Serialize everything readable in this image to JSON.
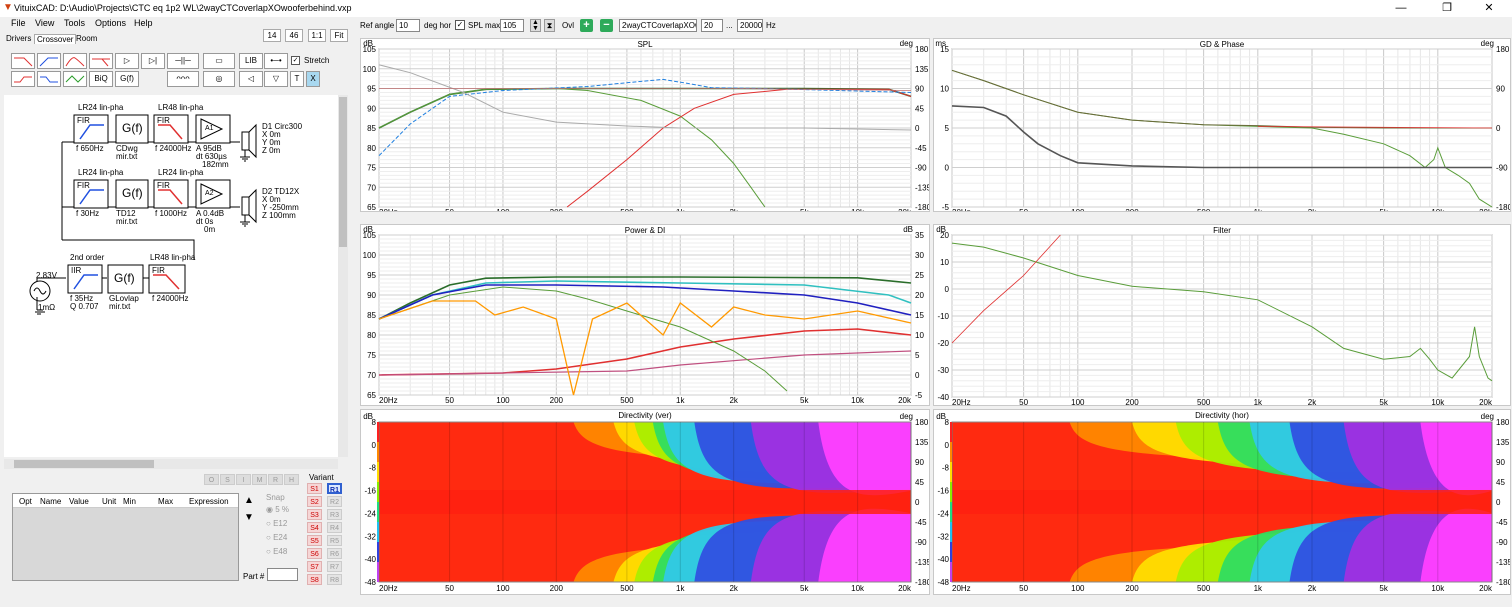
{
  "window": {
    "title": "VituixCAD: D:\\Audio\\Projects\\CTC eq 1p2 WL\\2wayCTCoverlapXOwooferbehind.vxp",
    "min": "—",
    "max": "❐",
    "close": "✕"
  },
  "menu": [
    "File",
    "View",
    "Tools",
    "Options",
    "Help"
  ],
  "tabs": [
    "Drivers",
    "Crossover",
    "Room"
  ],
  "zoom_buttons": [
    "14",
    "46",
    "1:1",
    "Fit"
  ],
  "toolbar": {
    "ref_angle_label": "Ref angle",
    "ref_angle": "10",
    "deg_hor": "deg hor",
    "spl_max_label": "SPL max",
    "spl_max": "105",
    "ovl_label": "Ovl",
    "ovl_file": "2wayCTCoverlapXOwooferbehind",
    "f_min": "20",
    "dots": "...",
    "f_max": "20000",
    "hz": "Hz"
  },
  "filter_buttons": {
    "biq": "BiQ",
    "gf": "G(f)",
    "lib": "LIB",
    "stretch": "Stretch",
    "t": "T",
    "x": "X"
  },
  "schematic": {
    "b1": {
      "t1": "LR24 lin-pha",
      "t2": "LR48 lin-pha",
      "fir": "FIR",
      "gf": "G(f)",
      "f1": "f  650Hz",
      "cd": "CDwg",
      "mir": "mir.txt",
      "f2": "f  24000Hz",
      "a": "A  95dB",
      "dt": "dt 630µs",
      "mm": "182mm",
      "amp": "A1"
    },
    "b2": {
      "t1": "LR24 lin-pha",
      "t2": "LR24 lin-pha",
      "fir": "FIR",
      "gf": "G(f)",
      "f1": "f  30Hz",
      "cd": "TD12",
      "mir": "mir.txt",
      "f2": "f  1000Hz",
      "a": "A  0.4dB",
      "dt": "dt 0s",
      "mm": "0m",
      "amp": "A2"
    },
    "d1": {
      "name": "D1 Circ300",
      "x": "X 0m",
      "y": "Y 0m",
      "z": "Z 0m"
    },
    "d2": {
      "name": "D2 TD12X",
      "x": "X 0m",
      "y": "Y -250mm",
      "z": "Z 100mm"
    },
    "src": {
      "t1": "2nd order",
      "t2": "LR48 lin-pha",
      "iir": "IIR",
      "fir": "FIR",
      "gf": "G(f)",
      "f1": "f  35Hz",
      "q": "Q  0.707",
      "gl": "GLovlap",
      "mir": "mir.txt",
      "f2": "f  24000Hz",
      "v": "2.83V",
      "r": "1mΩ"
    }
  },
  "optgrid": {
    "headers": [
      "Opt",
      "Name",
      "Value",
      "Unit",
      "Min",
      "Max",
      "Expression"
    ],
    "btns": [
      "O",
      "S",
      "I",
      "M",
      "R",
      "H"
    ]
  },
  "snap": {
    "label": "Snap",
    "opts": [
      "5 %",
      "E12",
      "E24",
      "E48"
    ]
  },
  "part_label": "Part #",
  "variant": {
    "label": "Variant",
    "s": [
      "S1",
      "S2",
      "S3",
      "S4",
      "S5",
      "S6",
      "S7",
      "S8"
    ],
    "r": [
      "R1",
      "R2",
      "R3",
      "R4",
      "R5",
      "R6",
      "R7",
      "R8"
    ]
  },
  "freq_ticks": [
    "20Hz",
    "50",
    "100",
    "200",
    "500",
    "1k",
    "2k",
    "5k",
    "10k",
    "20k"
  ],
  "panels": {
    "spl": {
      "title": "SPL",
      "left_unit": "dB",
      "right_unit": "deg",
      "left": [
        "105",
        "100",
        "95",
        "90",
        "85",
        "80",
        "75",
        "70",
        "65"
      ],
      "right": [
        "180",
        "135",
        "90",
        "45",
        "0",
        "-45",
        "-90",
        "-135",
        "-180"
      ]
    },
    "gd": {
      "title": "GD & Phase",
      "left_unit": "ms",
      "right_unit": "deg",
      "left": [
        "15",
        "10",
        "5",
        "0",
        "-5"
      ],
      "right": [
        "180",
        "90",
        "0",
        "-90",
        "-180"
      ]
    },
    "pow": {
      "title": "Power & DI",
      "left_unit": "dB",
      "right_unit": "dB",
      "left": [
        "105",
        "100",
        "95",
        "90",
        "85",
        "80",
        "75",
        "70",
        "65"
      ],
      "right": [
        "35",
        "30",
        "25",
        "20",
        "15",
        "10",
        "5",
        "0",
        "-5"
      ]
    },
    "flt": {
      "title": "Filter",
      "left_unit": "dB",
      "left": [
        "20",
        "10",
        "0",
        "-10",
        "-20",
        "-30",
        "-40"
      ]
    },
    "dv": {
      "title": "Directivity (ver)",
      "left_unit": "dB",
      "right_unit": "deg",
      "left": [
        "8",
        "0",
        "-8",
        "-16",
        "-24",
        "-32",
        "-40",
        "-48"
      ],
      "right": [
        "180",
        "135",
        "90",
        "45",
        "0",
        "-45",
        "-90",
        "-135",
        "-180"
      ]
    },
    "dh": {
      "title": "Directivity (hor)",
      "left_unit": "dB",
      "right_unit": "deg",
      "left": [
        "8",
        "0",
        "-8",
        "-16",
        "-24",
        "-32",
        "-40",
        "-48"
      ],
      "right": [
        "180",
        "135",
        "90",
        "45",
        "0",
        "-45",
        "-90",
        "-135",
        "-180"
      ]
    }
  },
  "colors": {
    "accent_red": "#e03030",
    "accent_blue": "#2050e0",
    "green": "#2a9d2a",
    "selected": "#a8d8f0"
  }
}
